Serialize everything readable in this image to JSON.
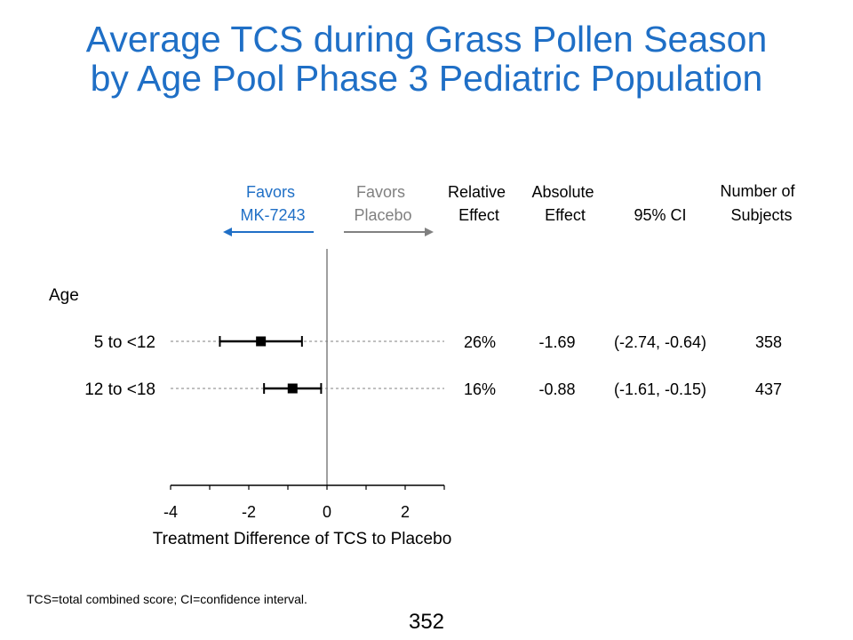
{
  "title": {
    "line1": "Average TCS during Grass Pollen Season",
    "line2": "by Age Pool Phase 3 Pediatric Population"
  },
  "colors": {
    "title": "#1f6fc6",
    "favors_active": "#1f6fc6",
    "favors_placebo": "#808080"
  },
  "headers": {
    "favors_active": [
      "Favors",
      "MK-7243"
    ],
    "favors_placebo": [
      "Favors",
      "Placebo"
    ],
    "relative_effect": [
      "Relative",
      "Effect"
    ],
    "absolute_effect": [
      "Absolute",
      "Effect"
    ],
    "ci": "95% CI",
    "n": [
      "Number of",
      "Subjects"
    ]
  },
  "group_label": "Age",
  "chart_data": {
    "type": "forest",
    "xlabel": "Treatment Difference of TCS to Placebo",
    "xlim": [
      -4,
      3
    ],
    "xticks": [
      -4,
      -2,
      0,
      2
    ],
    "xtick_labels": [
      "-4",
      "-2",
      "0",
      "2"
    ],
    "reference_line": 0,
    "rows": [
      {
        "label": "5 to <12",
        "estimate": -1.69,
        "ci_low": -2.74,
        "ci_high": -0.64,
        "relative_effect": "26%",
        "absolute_effect": "-1.69",
        "ci_text": "(-2.74,  -0.64)",
        "n": "358"
      },
      {
        "label": "12 to <18",
        "estimate": -0.88,
        "ci_low": -1.61,
        "ci_high": -0.15,
        "relative_effect": "16%",
        "absolute_effect": "-0.88",
        "ci_text": "(-1.61,  -0.15)",
        "n": "437"
      }
    ]
  },
  "footnote": "TCS=total combined score; CI=confidence interval.",
  "page_number": "352"
}
